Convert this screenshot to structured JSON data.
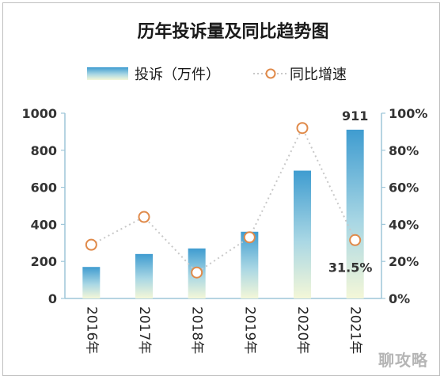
{
  "title": "历年投诉量及同比趋势图",
  "legend": {
    "bar_label": "投诉（万件）",
    "line_label": "同比增速"
  },
  "watermark": "聊攻略",
  "colors": {
    "bar_top": "#3f9cd0",
    "bar_mid": "#a9d7e4",
    "bar_bottom": "#f4f7d8",
    "line": "#c8c8c8",
    "marker": "#e08a4a",
    "axis": "#9ec6d8",
    "text": "#1a1a1a"
  },
  "chart_data": {
    "type": "bar",
    "categories": [
      "2016年",
      "2017年",
      "2018年",
      "2019年",
      "2020年",
      "2021年"
    ],
    "series": [
      {
        "name": "投诉（万件）",
        "type": "bar",
        "axis": "left",
        "values": [
          170,
          240,
          270,
          360,
          690,
          911
        ]
      },
      {
        "name": "同比增速",
        "type": "line",
        "axis": "right",
        "values": [
          29,
          44,
          14,
          33,
          92,
          31.5
        ]
      }
    ],
    "y_left": {
      "min": 0,
      "max": 1000,
      "ticks": [
        "0",
        "200",
        "400",
        "600",
        "800",
        "1000"
      ]
    },
    "y_right": {
      "min": 0,
      "max": 100,
      "ticks": [
        "0%",
        "20%",
        "40%",
        "60%",
        "80%",
        "100%"
      ]
    },
    "data_labels": [
      {
        "series": 0,
        "index": 5,
        "text": "911"
      },
      {
        "series": 1,
        "index": 5,
        "text": "31.5%"
      }
    ],
    "grid": false,
    "legend_position": "top"
  }
}
